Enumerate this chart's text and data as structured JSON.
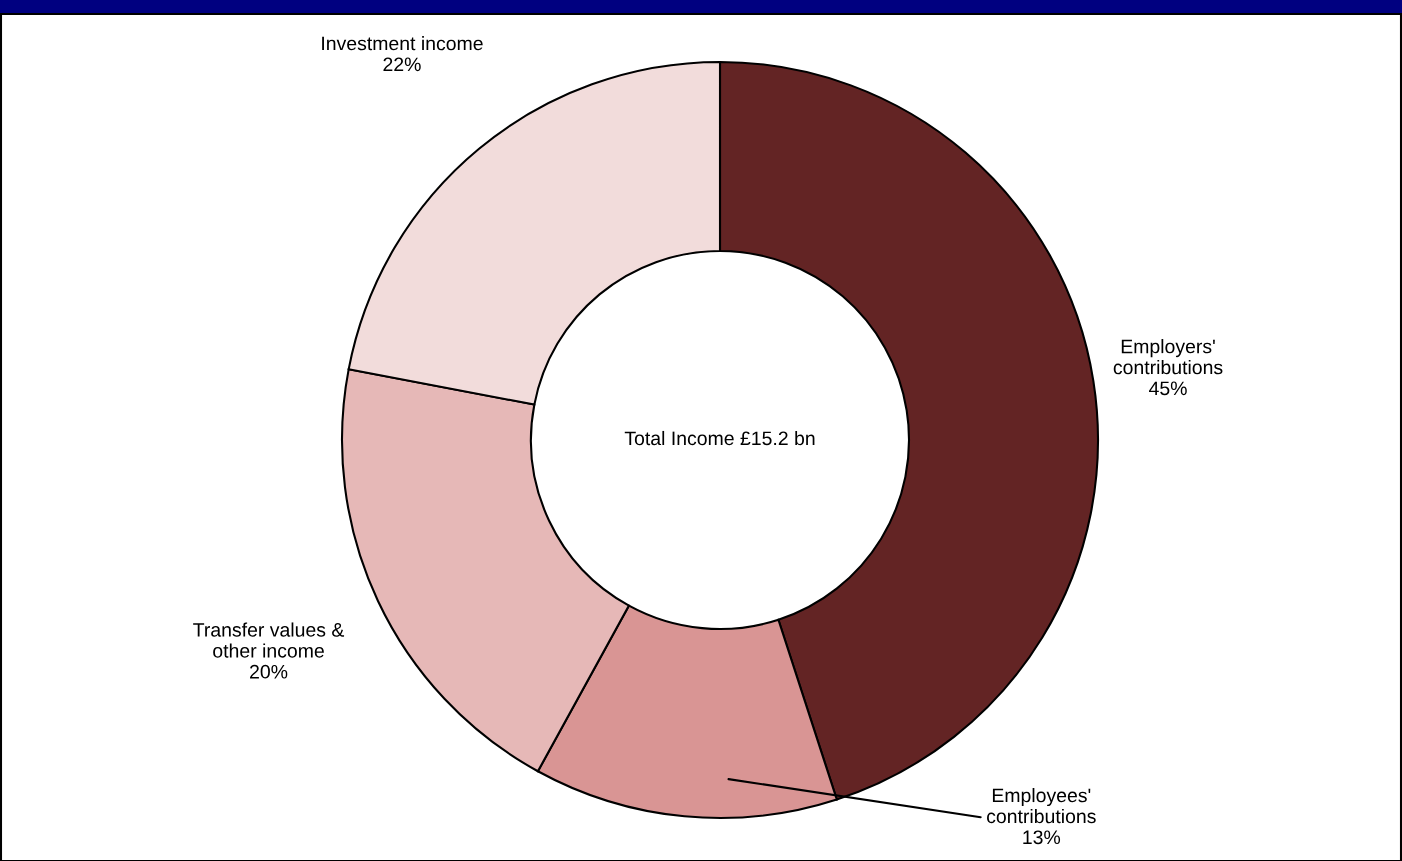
{
  "chart_data": {
    "type": "donut",
    "categories": [
      "Employers'\ncontributions",
      "Employees'\ncontributions",
      "Transfer values &\nother income",
      "Investment income"
    ],
    "values": [
      45,
      13,
      20,
      22
    ],
    "colors": [
      "#632424",
      "#d99594",
      "#e6b8b7",
      "#f2dcdb"
    ],
    "value_labels": [
      "45%",
      "13%",
      "20%",
      "22%"
    ],
    "annotations": [
      "Total Income £15.2 bn"
    ]
  }
}
